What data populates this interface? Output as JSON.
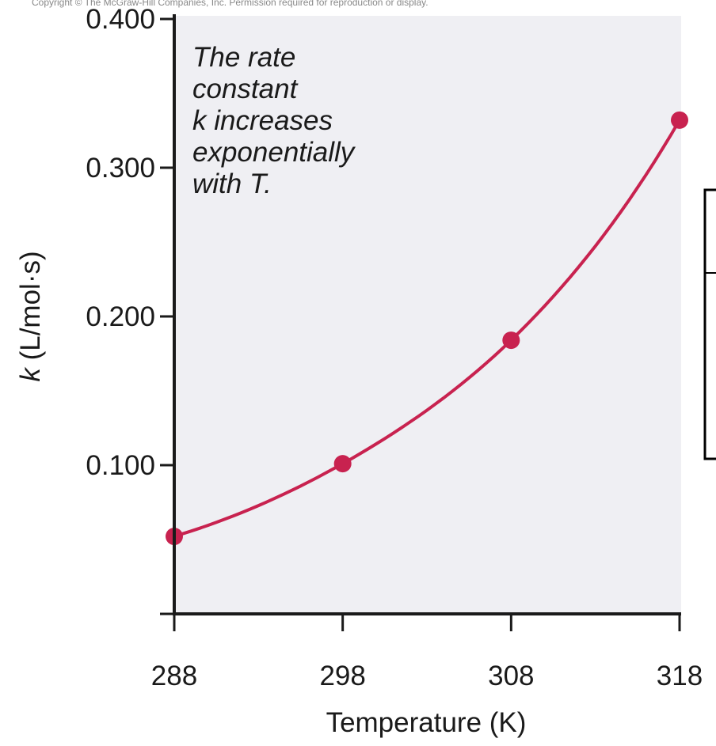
{
  "header_snippet": "Copyright © The McGraw-Hill Companies, Inc. Permission required for reproduction or display.",
  "annotation_lines": [
    "The rate",
    "constant",
    "k increases",
    "exponentially",
    "with T."
  ],
  "colors": {
    "series": "#c8224f",
    "plot_background": "#efeff3",
    "axis": "#1a1a1a",
    "box": "#000000"
  },
  "chart_data": {
    "type": "line",
    "title": "",
    "xlabel": "Temperature (K)",
    "ylabel": "k (L/mol·s)",
    "x_ticks": [
      288,
      298,
      308,
      318
    ],
    "y_ticks": [
      0.1,
      0.2,
      0.3,
      0.4
    ],
    "y_tick_labels": [
      "0.100",
      "0.200",
      "0.300",
      "0.400"
    ],
    "xlim": [
      288,
      318
    ],
    "ylim": [
      0.0,
      0.4
    ],
    "grid": false,
    "legend": "none",
    "series": [
      {
        "x": [
          288,
          298,
          308,
          318
        ],
        "y": [
          0.0521,
          0.101,
          0.184,
          0.332
        ]
      }
    ]
  }
}
